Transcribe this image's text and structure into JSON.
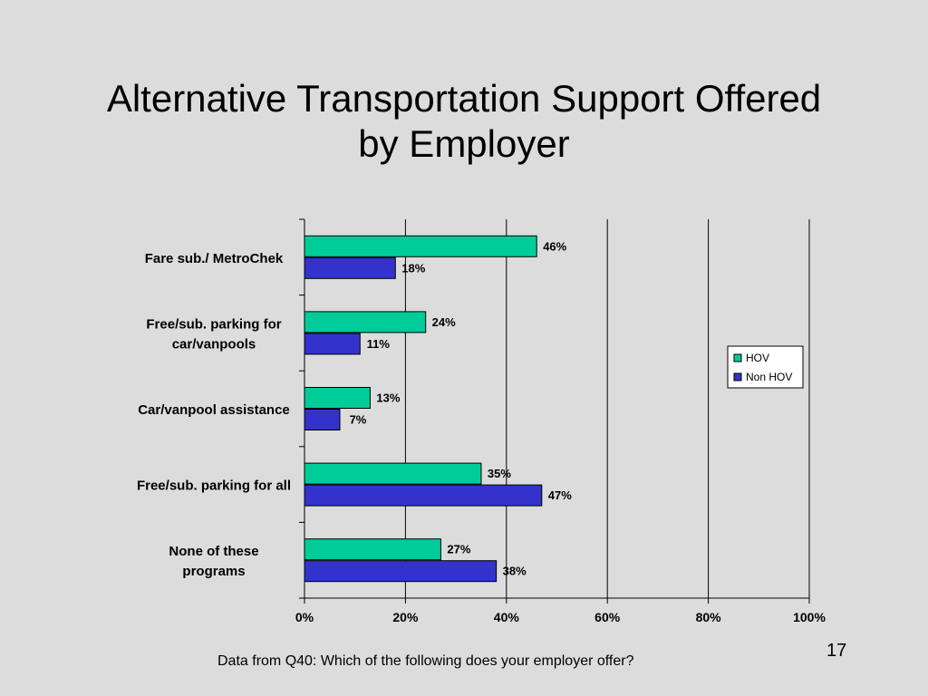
{
  "slide": {
    "title_lines": [
      "Alternative Transportation Support Offered",
      "by Employer"
    ],
    "footnote": "Data from Q40:  Which of the following does your employer offer?",
    "page_number": "17"
  },
  "chart_data": {
    "type": "bar",
    "orientation": "horizontal",
    "categories": [
      [
        "Fare sub./ MetroChek"
      ],
      [
        "Free/sub. parking for",
        "car/vanpools"
      ],
      [
        "Car/vanpool assistance"
      ],
      [
        "Free/sub. parking for all"
      ],
      [
        "None of these",
        "programs"
      ]
    ],
    "series": [
      {
        "name": "HOV",
        "values": [
          46,
          24,
          13,
          35,
          27
        ],
        "color": "#00cc99"
      },
      {
        "name": "Non HOV",
        "values": [
          18,
          11,
          7,
          47,
          38
        ],
        "color": "#3333cc"
      }
    ],
    "data_labels": {
      "HOV": [
        "46%",
        "24%",
        "13%",
        "35%",
        "27%"
      ],
      "Non HOV": [
        "18%",
        "11%",
        "7%",
        "47%",
        "38%"
      ]
    },
    "xlim": [
      0,
      100
    ],
    "xticks": [
      0,
      20,
      40,
      60,
      80,
      100
    ],
    "xtick_labels": [
      "0%",
      "20%",
      "40%",
      "60%",
      "80%",
      "100%"
    ],
    "grid": "vertical",
    "legend_position": "right"
  }
}
